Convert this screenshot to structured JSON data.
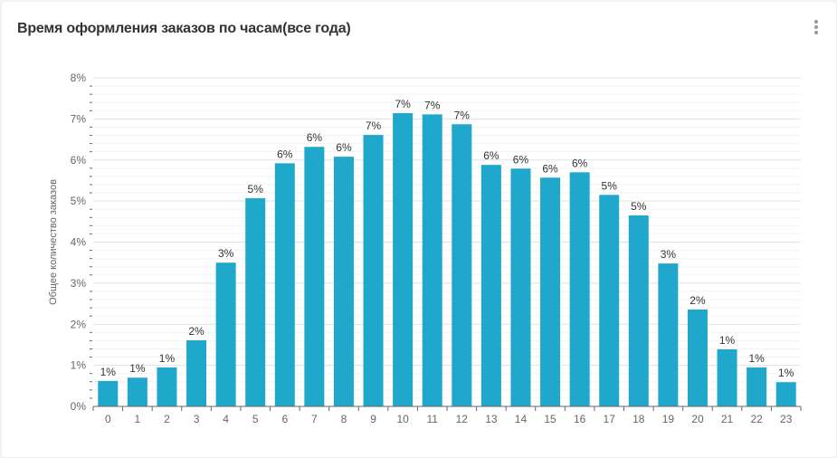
{
  "header": {
    "title": "Время оформления заказов по часам(все года)",
    "menu_icon": "more-vertical-icon"
  },
  "chart_data": {
    "type": "bar",
    "title": "Время оформления заказов по часам(все года)",
    "xlabel": "",
    "ylabel": "Общее количество заказов",
    "categories": [
      "0",
      "1",
      "2",
      "3",
      "4",
      "5",
      "6",
      "7",
      "8",
      "9",
      "10",
      "11",
      "12",
      "13",
      "14",
      "15",
      "16",
      "17",
      "18",
      "19",
      "20",
      "21",
      "22",
      "23"
    ],
    "values": [
      0.62,
      0.7,
      0.95,
      1.61,
      3.5,
      5.07,
      5.92,
      6.32,
      6.08,
      6.61,
      7.14,
      7.11,
      6.87,
      5.88,
      5.79,
      5.57,
      5.7,
      5.15,
      4.65,
      3.48,
      2.36,
      1.39,
      0.95,
      0.59
    ],
    "data_labels": [
      "1%",
      "1%",
      "1%",
      "2%",
      "3%",
      "5%",
      "6%",
      "6%",
      "6%",
      "7%",
      "7%",
      "7%",
      "7%",
      "6%",
      "6%",
      "6%",
      "6%",
      "5%",
      "5%",
      "3%",
      "2%",
      "1%",
      "1%",
      "1%"
    ],
    "ylim": [
      0,
      8
    ],
    "yticks": [
      "0%",
      "1%",
      "2%",
      "3%",
      "4%",
      "5%",
      "6%",
      "7%",
      "8%"
    ],
    "grid": true,
    "bar_color": "#1fa8cb",
    "legend": "none"
  }
}
